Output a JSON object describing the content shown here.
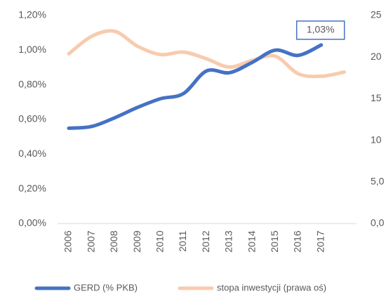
{
  "chart_data": {
    "type": "line",
    "categories": [
      "2006",
      "2007",
      "2008",
      "2009",
      "2010",
      "2011",
      "2012",
      "2013",
      "2014",
      "2015",
      "2016",
      "2017",
      null
    ],
    "series": [
      {
        "name": "GERD (% PKB)",
        "color": "#4472c4",
        "values": [
          0.55,
          0.56,
          0.61,
          0.67,
          0.72,
          0.75,
          0.88,
          0.87,
          0.93,
          1.0,
          0.97,
          1.03,
          null
        ],
        "value_labels": [
          null,
          null,
          null,
          null,
          null,
          null,
          null,
          null,
          null,
          null,
          null,
          "1,03%",
          null
        ]
      },
      {
        "name": "stopa inwestycji (prawa oś)",
        "color": "#f8cbad",
        "axis": "y2",
        "values": [
          20.4,
          22.5,
          23.1,
          21.3,
          20.3,
          20.6,
          19.8,
          18.8,
          19.6,
          20.1,
          18.0,
          17.7,
          18.2
        ]
      }
    ],
    "ylim": [
      0,
      1.2
    ],
    "yticks": [
      {
        "value": 0,
        "label": "0,00%"
      },
      {
        "value": 0.2,
        "label": "0,20%"
      },
      {
        "value": 0.4,
        "label": "0,40%"
      },
      {
        "value": 0.6,
        "label": "0,60%"
      },
      {
        "value": 0.8,
        "label": "0,80%"
      },
      {
        "value": 1.0,
        "label": "1,00%"
      },
      {
        "value": 1.2,
        "label": "1,20%"
      }
    ],
    "y2lim": [
      0,
      25
    ],
    "y2ticks": [
      {
        "value": 0,
        "label": "0,0"
      },
      {
        "value": 5,
        "label": "5,0"
      },
      10,
      15,
      20,
      25
    ],
    "grid": false,
    "legend": "bottom"
  }
}
